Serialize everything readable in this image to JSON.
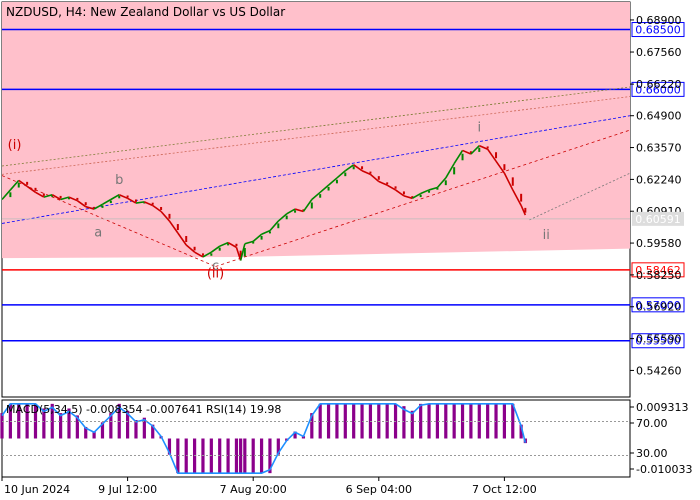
{
  "chart_data": {
    "type": "line",
    "title": "NZDUSD, H4:  New Zealand Dollar vs US Dollar",
    "price_axis": {
      "ticks": [
        "0.68900",
        "0.67560",
        "0.66220",
        "0.64900",
        "0.63570",
        "0.62240",
        "0.60910",
        "0.59580",
        "0.58250",
        "0.56920",
        "0.55590",
        "0.54260"
      ],
      "range": [
        0.5315,
        0.6965
      ]
    },
    "time_axis": {
      "labels": [
        "10 Jun 2024",
        "9 Jul 12:00",
        "7 Aug 20:00",
        "6 Sep 04:00",
        "7 Oct 12:00"
      ],
      "range": [
        0,
        150
      ]
    },
    "series": [
      {
        "values": [
          [
            0,
            0.614
          ],
          [
            2,
            0.618
          ],
          [
            4,
            0.622
          ],
          [
            6,
            0.6195
          ],
          [
            8,
            0.617
          ],
          [
            10,
            0.615
          ],
          [
            12,
            0.616
          ],
          [
            14,
            0.614
          ],
          [
            16,
            0.615
          ],
          [
            18,
            0.6135
          ],
          [
            20,
            0.611
          ],
          [
            22,
            0.61
          ],
          [
            24,
            0.612
          ],
          [
            26,
            0.614
          ],
          [
            28,
            0.616
          ],
          [
            30,
            0.6145
          ],
          [
            32,
            0.6125
          ],
          [
            34,
            0.613
          ],
          [
            36,
            0.6115
          ],
          [
            38,
            0.609
          ],
          [
            40,
            0.605
          ],
          [
            42,
            0.6
          ],
          [
            44,
            0.595
          ],
          [
            46,
            0.592
          ],
          [
            48,
            0.59
          ],
          [
            50,
            0.592
          ],
          [
            52,
            0.5945
          ],
          [
            54,
            0.596
          ],
          [
            56,
            0.594
          ],
          [
            57,
            0.5885
          ],
          [
            58,
            0.5955
          ],
          [
            60,
            0.5965
          ],
          [
            62,
            0.5995
          ],
          [
            64,
            0.601
          ],
          [
            66,
            0.605
          ],
          [
            68,
            0.608
          ],
          [
            70,
            0.61
          ],
          [
            72,
            0.609
          ],
          [
            74,
            0.614
          ],
          [
            76,
            0.617
          ],
          [
            78,
            0.62
          ],
          [
            80,
            0.623
          ],
          [
            82,
            0.626
          ],
          [
            84,
            0.6285
          ],
          [
            86,
            0.626
          ],
          [
            88,
            0.6245
          ],
          [
            90,
            0.6215
          ],
          [
            92,
            0.62
          ],
          [
            94,
            0.618
          ],
          [
            96,
            0.6155
          ],
          [
            98,
            0.6145
          ],
          [
            100,
            0.6165
          ],
          [
            102,
            0.618
          ],
          [
            104,
            0.619
          ],
          [
            106,
            0.623
          ],
          [
            108,
            0.629
          ],
          [
            110,
            0.6345
          ],
          [
            112,
            0.633
          ],
          [
            114,
            0.6365
          ],
          [
            116,
            0.635
          ],
          [
            118,
            0.63
          ],
          [
            120,
            0.625
          ],
          [
            122,
            0.618
          ],
          [
            124,
            0.6115
          ],
          [
            125,
            0.6075
          ]
        ]
      }
    ],
    "horizontal_levels": [
      {
        "value": 0.685,
        "label": "0.68500",
        "color": "#0000ff"
      },
      {
        "value": 0.66,
        "label": "0.66000",
        "color": "#0000ff"
      },
      {
        "value": 0.58462,
        "label": "0.58462",
        "color": "#ff0000"
      },
      {
        "value": 0.57,
        "label": "0.57000",
        "color": "#0000ff"
      },
      {
        "value": 0.555,
        "label": "0.55500",
        "color": "#0000ff"
      }
    ],
    "current_price": {
      "value": 0.60591,
      "label": "0.60591"
    },
    "wave_labels": [
      {
        "text": "(i)",
        "t": 3,
        "p": 0.635,
        "color": "#cc0000"
      },
      {
        "text": "a",
        "t": 23,
        "p": 0.5985,
        "color": "#777777"
      },
      {
        "text": "b",
        "t": 28,
        "p": 0.6205,
        "color": "#777777"
      },
      {
        "text": "c",
        "t": 51,
        "p": 0.5845,
        "color": "#777777"
      },
      {
        "text": "(ii)",
        "t": 51,
        "p": 0.5815,
        "color": "#cc0000"
      },
      {
        "text": "i",
        "t": 114,
        "p": 0.6425,
        "color": "#777777"
      },
      {
        "text": "ii",
        "t": 130,
        "p": 0.5975,
        "color": "#777777"
      }
    ],
    "indicator": {
      "label": "MACD(5,34,5) -0.008354 -0.007641 RSI(14) 19.98",
      "ticks": [
        "0.009313",
        "70.00",
        "30.00",
        "-0.010033"
      ]
    },
    "colors": {
      "price_up": "#008800",
      "price_down": "#cc0000",
      "zone_fill": "#ffc0cb",
      "level_blue": "#0000ff",
      "level_red": "#ff0000",
      "macd_hist": "#8b008b",
      "rsi_line": "#1e90ff"
    }
  }
}
